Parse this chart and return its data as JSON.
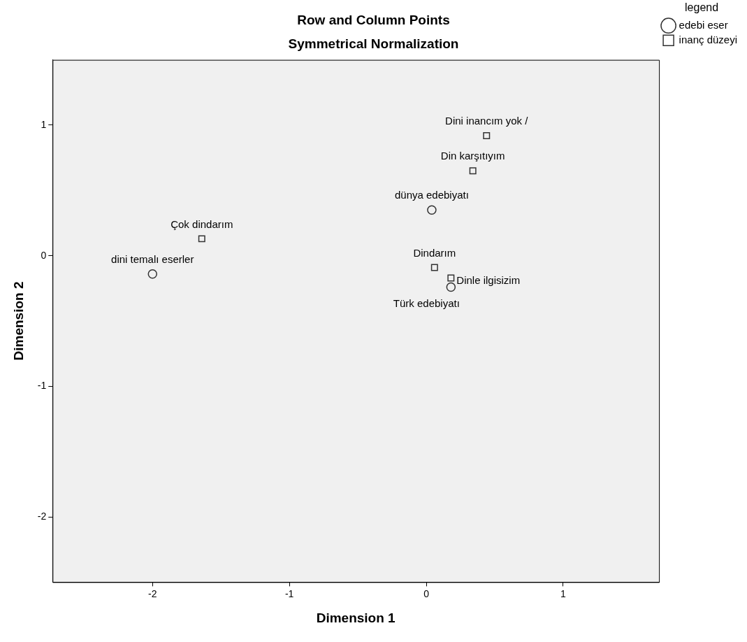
{
  "chart_data": {
    "type": "scatter",
    "title": "Row and Column Points",
    "subtitle": "Symmetrical Normalization",
    "xlabel": "Dimension 1",
    "ylabel": "Dimension 2",
    "legend_title": "legend",
    "legend": "right",
    "grid": false,
    "xlim": [
      -2.73,
      1.7
    ],
    "ylim": [
      -2.5,
      1.5
    ],
    "xticks": [
      -2,
      -1,
      0,
      1
    ],
    "yticks": [
      -2,
      -1,
      0,
      1
    ],
    "series": [
      {
        "name": "edebi eser",
        "color": "#333333",
        "marker": "circle",
        "x": [
          0.04,
          -2.0,
          0.18
        ],
        "values": [
          0.35,
          -0.14,
          -0.24
        ]
      },
      {
        "name": "inanç düzeyi",
        "color": "#333333",
        "marker": "square",
        "x": [
          0.44,
          0.34,
          -1.64,
          0.06,
          0.18
        ],
        "values": [
          0.92,
          0.65,
          0.13,
          -0.09,
          -0.17
        ]
      }
    ],
    "annotations": [
      {
        "text": "dünya edebiyatı",
        "x": 0.04,
        "y": 0.35
      },
      {
        "text": "dini temalı eserler",
        "x": -2.0,
        "y": -0.14
      },
      {
        "text": "Türk edebiyatı",
        "x": 0.18,
        "y": -0.24
      },
      {
        "text": "Dini inancım yok /",
        "x": 0.44,
        "y": 0.92
      },
      {
        "text": "Din karşıtıyım",
        "x": 0.34,
        "y": 0.65
      },
      {
        "text": "Çok dindarım",
        "x": -1.64,
        "y": 0.13
      },
      {
        "text": "Dindarım",
        "x": 0.06,
        "y": -0.09
      },
      {
        "text": "Dinle ilgisizim",
        "x": 0.18,
        "y": -0.17
      }
    ]
  }
}
